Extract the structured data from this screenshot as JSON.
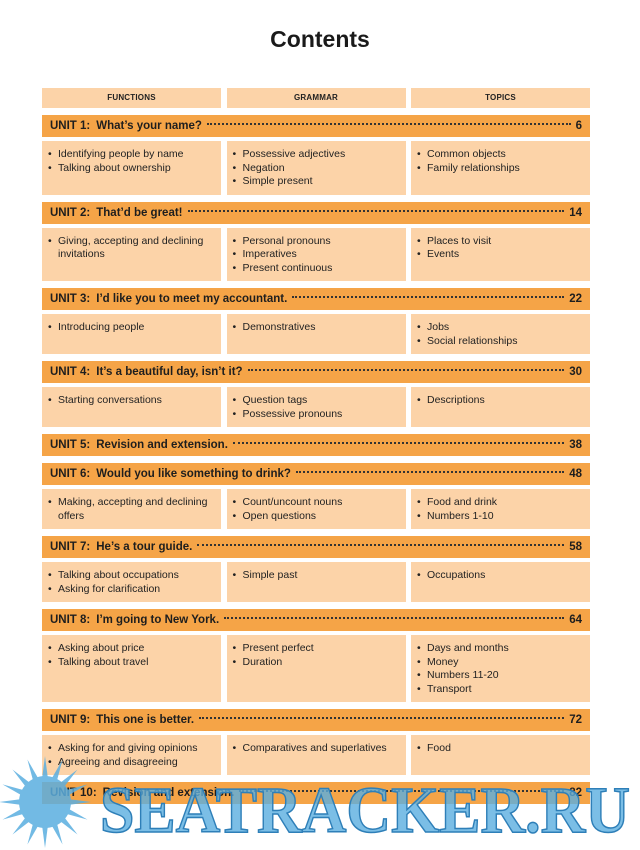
{
  "title": "Contents",
  "headers": [
    "FUNCTIONS",
    "GRAMMAR",
    "TOPICS"
  ],
  "units": [
    {
      "label": "UNIT 1:",
      "title": "What’s your name?",
      "page": 6,
      "functions": [
        "Identifying people by name",
        "Talking about ownership"
      ],
      "grammar": [
        "Possessive adjectives",
        "Negation",
        "Simple present"
      ],
      "topics": [
        "Common objects",
        "Family relationships"
      ]
    },
    {
      "label": "UNIT 2:",
      "title": "That’d be great!",
      "page": 14,
      "functions": [
        "Giving, accepting and declining invitations"
      ],
      "grammar": [
        "Personal pronouns",
        "Imperatives",
        "Present continuous"
      ],
      "topics": [
        "Places to visit",
        "Events"
      ]
    },
    {
      "label": "UNIT 3:",
      "title": "I’d like you to meet my accountant.",
      "page": 22,
      "functions": [
        "Introducing people"
      ],
      "grammar": [
        "Demonstratives"
      ],
      "topics": [
        "Jobs",
        "Social relationships"
      ]
    },
    {
      "label": "UNIT 4:",
      "title": "It’s a beautiful day, isn’t it?",
      "page": 30,
      "functions": [
        "Starting conversations"
      ],
      "grammar": [
        "Question tags",
        "Possessive pronouns"
      ],
      "topics": [
        "Descriptions"
      ]
    },
    {
      "label": "UNIT 5:",
      "title": "Revision and extension.",
      "page": 38
    },
    {
      "label": "UNIT 6:",
      "title": "Would you like something to drink?",
      "page": 48,
      "functions": [
        "Making, accepting and declining offers"
      ],
      "grammar": [
        "Count/uncount nouns",
        "Open questions"
      ],
      "topics": [
        "Food and drink",
        "Numbers 1-10"
      ]
    },
    {
      "label": "UNIT 7:",
      "title": "He’s a tour guide.",
      "page": 58,
      "functions": [
        "Talking about occupations",
        "Asking for clarification"
      ],
      "grammar": [
        "Simple past"
      ],
      "topics": [
        "Occupations"
      ]
    },
    {
      "label": "UNIT 8:",
      "title": "I’m going to New York.",
      "page": 64,
      "functions": [
        "Asking about price",
        "Talking about travel"
      ],
      "grammar": [
        "Present perfect",
        "Duration"
      ],
      "topics": [
        "Days and months",
        "Money",
        "Numbers 11-20",
        "Transport"
      ]
    },
    {
      "label": "UNIT 9:",
      "title": "This one is better.",
      "page": 72,
      "functions": [
        "Asking for and giving opinions",
        "Agreeing and disagreeing"
      ],
      "grammar": [
        "Comparatives and superlatives"
      ],
      "topics": [
        "Food"
      ]
    },
    {
      "label": "UNIT 10:",
      "title": "Revision and extension.",
      "page": 82
    }
  ],
  "watermark": "SEATRACKER.RU"
}
